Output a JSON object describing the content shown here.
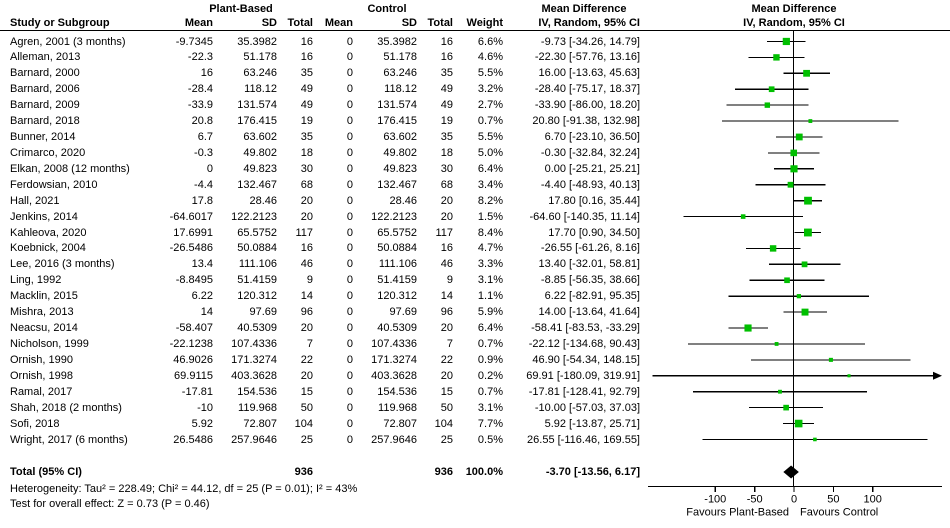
{
  "header": {
    "group_plant": "Plant-Based",
    "group_control": "Control",
    "md_col_title": "Mean Difference",
    "md_plot_title": "Mean Difference",
    "sub": {
      "study": "Study or Subgroup",
      "mean": "Mean",
      "sd": "SD",
      "total": "Total",
      "mean2": "Mean",
      "sd2": "SD",
      "total2": "Total",
      "weight": "Weight",
      "ci": "IV, Random, 95% CI",
      "ci_plot": "IV, Random, 95% CI"
    }
  },
  "colors": {
    "marker_green": "#00bf00",
    "diamond_black": "#000000",
    "line_black": "#000000"
  },
  "chart_data": {
    "type": "forest",
    "effect_measure": "Mean Difference",
    "model": "IV, Random, 95% CI",
    "studies": [
      {
        "name": "Agren, 2001 (3 months)",
        "mean": "-9.7345",
        "sd": "35.3982",
        "total": "16",
        "c_mean": "0",
        "c_sd": "35.3982",
        "c_total": "16",
        "weight": "6.6%",
        "weight_num": 6.6,
        "md": -9.73,
        "lo": -34.26,
        "hi": 14.79,
        "ci_text": "-9.73 [-34.26, 14.79]"
      },
      {
        "name": "Alleman, 2013",
        "mean": "-22.3",
        "sd": "51.178",
        "total": "16",
        "c_mean": "0",
        "c_sd": "51.178",
        "c_total": "16",
        "weight": "4.6%",
        "weight_num": 4.6,
        "md": -22.3,
        "lo": -57.76,
        "hi": 13.16,
        "ci_text": "-22.30 [-57.76, 13.16]"
      },
      {
        "name": "Barnard, 2000",
        "mean": "16",
        "sd": "63.246",
        "total": "35",
        "c_mean": "0",
        "c_sd": "63.246",
        "c_total": "35",
        "weight": "5.5%",
        "weight_num": 5.5,
        "md": 16.0,
        "lo": -13.63,
        "hi": 45.63,
        "ci_text": "16.00 [-13.63, 45.63]"
      },
      {
        "name": "Barnard, 2006",
        "mean": "-28.4",
        "sd": "118.12",
        "total": "49",
        "c_mean": "0",
        "c_sd": "118.12",
        "c_total": "49",
        "weight": "3.2%",
        "weight_num": 3.2,
        "md": -28.4,
        "lo": -75.17,
        "hi": 18.37,
        "ci_text": "-28.40 [-75.17, 18.37]"
      },
      {
        "name": "Barnard, 2009",
        "mean": "-33.9",
        "sd": "131.574",
        "total": "49",
        "c_mean": "0",
        "c_sd": "131.574",
        "c_total": "49",
        "weight": "2.7%",
        "weight_num": 2.7,
        "md": -33.9,
        "lo": -86.0,
        "hi": 18.2,
        "ci_text": "-33.90 [-86.00, 18.20]"
      },
      {
        "name": "Barnard, 2018",
        "mean": "20.8",
        "sd": "176.415",
        "total": "19",
        "c_mean": "0",
        "c_sd": "176.415",
        "c_total": "19",
        "weight": "0.7%",
        "weight_num": 0.7,
        "md": 20.8,
        "lo": -91.38,
        "hi": 132.98,
        "ci_text": "20.80 [-91.38, 132.98]"
      },
      {
        "name": "Bunner, 2014",
        "mean": "6.7",
        "sd": "63.602",
        "total": "35",
        "c_mean": "0",
        "c_sd": "63.602",
        "c_total": "35",
        "weight": "5.5%",
        "weight_num": 5.5,
        "md": 6.7,
        "lo": -23.1,
        "hi": 36.5,
        "ci_text": "6.70 [-23.10, 36.50]"
      },
      {
        "name": "Crimarco, 2020",
        "mean": "-0.3",
        "sd": "49.802",
        "total": "18",
        "c_mean": "0",
        "c_sd": "49.802",
        "c_total": "18",
        "weight": "5.0%",
        "weight_num": 5.0,
        "md": -0.3,
        "lo": -32.84,
        "hi": 32.24,
        "ci_text": "-0.30 [-32.84, 32.24]"
      },
      {
        "name": "Elkan, 2008 (12 months)",
        "mean": "0",
        "sd": "49.823",
        "total": "30",
        "c_mean": "0",
        "c_sd": "49.823",
        "c_total": "30",
        "weight": "6.4%",
        "weight_num": 6.4,
        "md": 0.0,
        "lo": -25.21,
        "hi": 25.21,
        "ci_text": "0.00 [-25.21, 25.21]"
      },
      {
        "name": "Ferdowsian, 2010",
        "mean": "-4.4",
        "sd": "132.467",
        "total": "68",
        "c_mean": "0",
        "c_sd": "132.467",
        "c_total": "68",
        "weight": "3.4%",
        "weight_num": 3.4,
        "md": -4.4,
        "lo": -48.93,
        "hi": 40.13,
        "ci_text": "-4.40 [-48.93, 40.13]"
      },
      {
        "name": "Hall, 2021",
        "mean": "17.8",
        "sd": "28.46",
        "total": "20",
        "c_mean": "0",
        "c_sd": "28.46",
        "c_total": "20",
        "weight": "8.2%",
        "weight_num": 8.2,
        "md": 17.8,
        "lo": 0.16,
        "hi": 35.44,
        "ci_text": "17.80 [0.16, 35.44]"
      },
      {
        "name": "Jenkins, 2014",
        "mean": "-64.6017",
        "sd": "122.2123",
        "total": "20",
        "c_mean": "0",
        "c_sd": "122.2123",
        "c_total": "20",
        "weight": "1.5%",
        "weight_num": 1.5,
        "md": -64.6,
        "lo": -140.35,
        "hi": 11.14,
        "ci_text": "-64.60 [-140.35, 11.14]"
      },
      {
        "name": "Kahleova, 2020",
        "mean": "17.6991",
        "sd": "65.5752",
        "total": "117",
        "c_mean": "0",
        "c_sd": "65.5752",
        "c_total": "117",
        "weight": "8.4%",
        "weight_num": 8.4,
        "md": 17.7,
        "lo": 0.9,
        "hi": 34.5,
        "ci_text": "17.70 [0.90, 34.50]"
      },
      {
        "name": "Koebnick, 2004",
        "mean": "-26.5486",
        "sd": "50.0884",
        "total": "16",
        "c_mean": "0",
        "c_sd": "50.0884",
        "c_total": "16",
        "weight": "4.7%",
        "weight_num": 4.7,
        "md": -26.55,
        "lo": -61.26,
        "hi": 8.16,
        "ci_text": "-26.55 [-61.26, 8.16]"
      },
      {
        "name": "Lee, 2016 (3 months)",
        "mean": "13.4",
        "sd": "111.106",
        "total": "46",
        "c_mean": "0",
        "c_sd": "111.106",
        "c_total": "46",
        "weight": "3.3%",
        "weight_num": 3.3,
        "md": 13.4,
        "lo": -32.01,
        "hi": 58.81,
        "ci_text": "13.40 [-32.01, 58.81]"
      },
      {
        "name": "Ling, 1992",
        "mean": "-8.8495",
        "sd": "51.4159",
        "total": "9",
        "c_mean": "0",
        "c_sd": "51.4159",
        "c_total": "9",
        "weight": "3.1%",
        "weight_num": 3.1,
        "md": -8.85,
        "lo": -56.35,
        "hi": 38.66,
        "ci_text": "-8.85 [-56.35, 38.66]"
      },
      {
        "name": "Macklin, 2015",
        "mean": "6.22",
        "sd": "120.312",
        "total": "14",
        "c_mean": "0",
        "c_sd": "120.312",
        "c_total": "14",
        "weight": "1.1%",
        "weight_num": 1.1,
        "md": 6.22,
        "lo": -82.91,
        "hi": 95.35,
        "ci_text": "6.22 [-82.91, 95.35]"
      },
      {
        "name": "Mishra, 2013",
        "mean": "14",
        "sd": "97.69",
        "total": "96",
        "c_mean": "0",
        "c_sd": "97.69",
        "c_total": "96",
        "weight": "5.9%",
        "weight_num": 5.9,
        "md": 14.0,
        "lo": -13.64,
        "hi": 41.64,
        "ci_text": "14.00 [-13.64, 41.64]"
      },
      {
        "name": "Neacsu, 2014",
        "mean": "-58.407",
        "sd": "40.5309",
        "total": "20",
        "c_mean": "0",
        "c_sd": "40.5309",
        "c_total": "20",
        "weight": "6.4%",
        "weight_num": 6.4,
        "md": -58.41,
        "lo": -83.53,
        "hi": -33.29,
        "ci_text": "-58.41 [-83.53, -33.29]"
      },
      {
        "name": "Nicholson, 1999",
        "mean": "-22.1238",
        "sd": "107.4336",
        "total": "7",
        "c_mean": "0",
        "c_sd": "107.4336",
        "c_total": "7",
        "weight": "0.7%",
        "weight_num": 0.7,
        "md": -22.12,
        "lo": -134.68,
        "hi": 90.43,
        "ci_text": "-22.12 [-134.68, 90.43]"
      },
      {
        "name": "Ornish, 1990",
        "mean": "46.9026",
        "sd": "171.3274",
        "total": "22",
        "c_mean": "0",
        "c_sd": "171.3274",
        "c_total": "22",
        "weight": "0.9%",
        "weight_num": 0.9,
        "md": 46.9,
        "lo": -54.34,
        "hi": 148.15,
        "ci_text": "46.90 [-54.34, 148.15]"
      },
      {
        "name": "Ornish, 1998",
        "mean": "69.9115",
        "sd": "403.3628",
        "total": "20",
        "c_mean": "0",
        "c_sd": "403.3628",
        "c_total": "20",
        "weight": "0.2%",
        "weight_num": 0.2,
        "md": 69.91,
        "lo": -180.09,
        "hi": 319.91,
        "ci_text": "69.91 [-180.09, 319.91]"
      },
      {
        "name": "Ramal, 2017",
        "mean": "-17.81",
        "sd": "154.536",
        "total": "15",
        "c_mean": "0",
        "c_sd": "154.536",
        "c_total": "15",
        "weight": "0.7%",
        "weight_num": 0.7,
        "md": -17.81,
        "lo": -128.41,
        "hi": 92.79,
        "ci_text": "-17.81 [-128.41, 92.79]"
      },
      {
        "name": "Shah, 2018 (2 months)",
        "mean": "-10",
        "sd": "119.968",
        "total": "50",
        "c_mean": "0",
        "c_sd": "119.968",
        "c_total": "50",
        "weight": "3.1%",
        "weight_num": 3.1,
        "md": -10.0,
        "lo": -57.03,
        "hi": 37.03,
        "ci_text": "-10.00 [-57.03, 37.03]"
      },
      {
        "name": "Sofi, 2018",
        "mean": "5.92",
        "sd": "72.807",
        "total": "104",
        "c_mean": "0",
        "c_sd": "72.807",
        "c_total": "104",
        "weight": "7.7%",
        "weight_num": 7.7,
        "md": 5.92,
        "lo": -13.87,
        "hi": 25.71,
        "ci_text": "5.92 [-13.87, 25.71]"
      },
      {
        "name": "Wright, 2017 (6 months)",
        "mean": "26.5486",
        "sd": "257.9646",
        "total": "25",
        "c_mean": "0",
        "c_sd": "257.9646",
        "c_total": "25",
        "weight": "0.5%",
        "weight_num": 0.5,
        "md": 26.55,
        "lo": -116.46,
        "hi": 169.55,
        "ci_text": "26.55 [-116.46, 169.55]"
      }
    ],
    "total_row": {
      "label": "Total (95% CI)",
      "total": "936",
      "c_total": "936",
      "weight": "100.0%",
      "md": -3.7,
      "lo": -13.56,
      "hi": 6.17,
      "ci_text": "-3.70 [-13.56, 6.17]"
    },
    "heterogeneity": "Heterogeneity: Tau² = 228.49; Chi² = 44.12, df = 25 (P = 0.01); I² = 43%",
    "overall_effect": "Test for overall effect: Z = 0.73 (P = 0.46)",
    "axis": {
      "ticks": [
        -100,
        -50,
        0,
        50,
        100
      ],
      "min": -185,
      "max": 188,
      "label_left": "Favours Plant-Based",
      "label_right": "Favours Control"
    }
  }
}
